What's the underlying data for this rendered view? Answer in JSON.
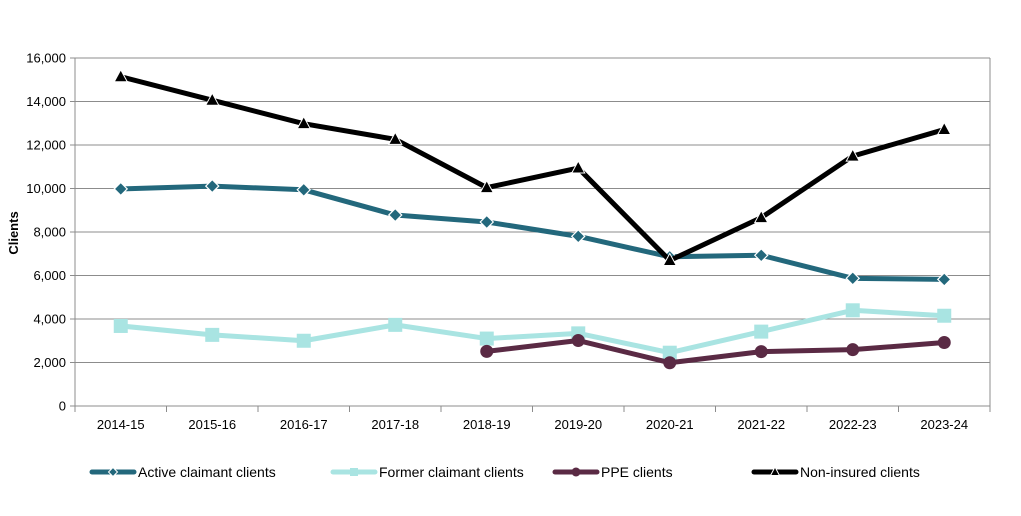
{
  "chart_data": {
    "type": "line",
    "title": "",
    "xlabel": "",
    "ylabel": "Clients",
    "ylim": [
      0,
      16000
    ],
    "yticks": [
      0,
      2000,
      4000,
      6000,
      8000,
      10000,
      12000,
      14000,
      16000
    ],
    "ytick_labels": [
      "0",
      "2,000",
      "4,000",
      "6,000",
      "8,000",
      "10,000",
      "12,000",
      "14,000",
      "16,000"
    ],
    "grid": "horizontal",
    "legend_position": "bottom",
    "categories": [
      "2014-15",
      "2015-16",
      "2016-17",
      "2017-18",
      "2018-19",
      "2019-20",
      "2020-21",
      "2021-22",
      "2022-23",
      "2023-24"
    ],
    "series": [
      {
        "name": "Active claimant clients",
        "color": "#23687c",
        "marker": "diamond",
        "values": [
          9980,
          10110,
          9940,
          8780,
          8460,
          7800,
          6860,
          6930,
          5870,
          5820
        ]
      },
      {
        "name": "Former claimant clients",
        "color": "#a9e4e2",
        "marker": "square",
        "values": [
          3680,
          3270,
          3000,
          3730,
          3100,
          3340,
          2450,
          3420,
          4400,
          4150
        ]
      },
      {
        "name": "PPE clients",
        "color": "#5a2a44",
        "marker": "circle",
        "values": [
          null,
          null,
          null,
          null,
          2510,
          3010,
          1990,
          2500,
          2590,
          2920
        ]
      },
      {
        "name": "Non-insured clients",
        "color": "#000000",
        "marker": "triangle",
        "values": [
          15140,
          14060,
          12980,
          12260,
          10040,
          10940,
          6690,
          8660,
          11490,
          12710
        ]
      }
    ]
  }
}
